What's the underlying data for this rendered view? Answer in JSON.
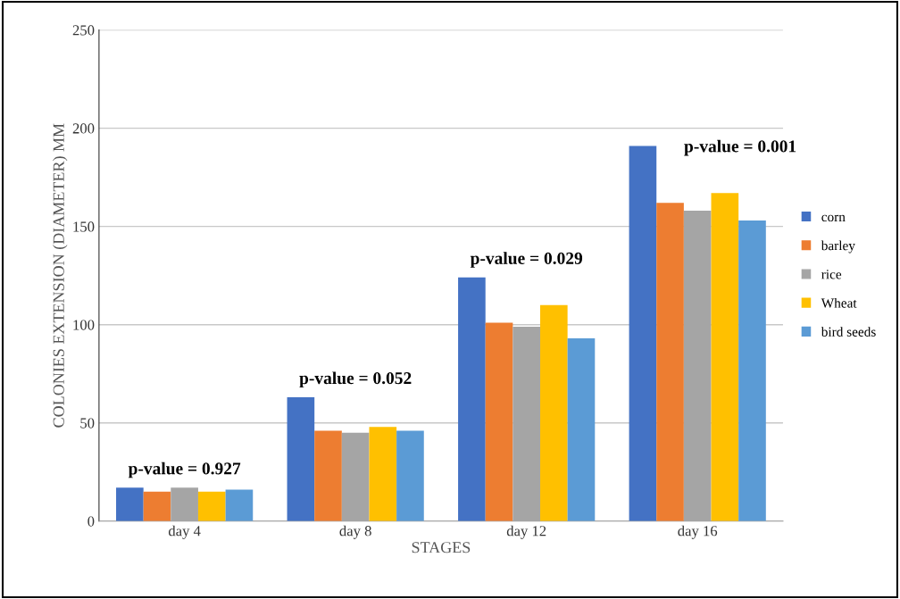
{
  "chart_data": {
    "type": "bar",
    "xlabel": "STAGES",
    "ylabel": "COLONIES EXTENSION (DIAMETER) MM",
    "categories": [
      "day 4",
      "day 8",
      "day 12",
      "day 16"
    ],
    "series": [
      {
        "name": "corn",
        "color": "#4472c4",
        "values": [
          17,
          63,
          124,
          191
        ]
      },
      {
        "name": "barley",
        "color": "#ed7d31",
        "values": [
          15,
          46,
          101,
          162
        ]
      },
      {
        "name": "rice",
        "color": "#a5a5a5",
        "values": [
          17,
          45,
          99,
          158
        ]
      },
      {
        "name": "Wheat",
        "color": "#ffc000",
        "values": [
          15,
          48,
          110,
          167
        ]
      },
      {
        "name": "bird seeds",
        "color": "#5b9bd5",
        "values": [
          16,
          46,
          93,
          153
        ]
      }
    ],
    "ylim": [
      0,
      250
    ],
    "yticks": [
      0,
      50,
      100,
      150,
      200,
      250
    ],
    "grid": "y",
    "legend": "right",
    "annotations": [
      "p-value = 0.927",
      "p-value = 0.052",
      "p-value = 0.029",
      "p-value = 0.001"
    ]
  }
}
